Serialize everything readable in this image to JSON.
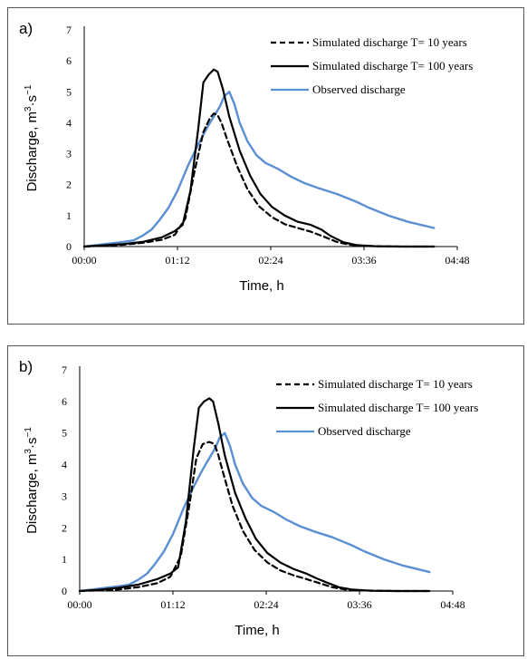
{
  "chart_data": [
    {
      "type": "line",
      "panel_label": "a)",
      "xlabel": "Time, h",
      "ylabel_prefix": "Discharge, m",
      "ylabel_sup1": "3",
      "ylabel_mid": "·s",
      "ylabel_sup2": "−1",
      "xlim": [
        0,
        288
      ],
      "ylim": [
        0,
        7
      ],
      "x_ticks": [
        {
          "value": 0,
          "label": "00:00"
        },
        {
          "value": 72,
          "label": "01:12"
        },
        {
          "value": 144,
          "label": "02:24"
        },
        {
          "value": 216,
          "label": "03:36"
        },
        {
          "value": 288,
          "label": "04:48"
        }
      ],
      "y_ticks": [
        0,
        1,
        2,
        3,
        4,
        5,
        6,
        7
      ],
      "legend_position": "top-right",
      "series": [
        {
          "name": "Simulated discharge T= 10 years",
          "color": "#000000",
          "style": "dashed",
          "x": [
            0,
            15,
            30,
            45,
            60,
            70,
            78,
            85,
            92,
            97,
            100,
            103,
            106,
            110,
            118,
            126,
            135,
            145,
            155,
            165,
            175,
            185,
            195,
            205,
            215,
            230,
            245,
            260,
            270
          ],
          "y": [
            0,
            0.03,
            0.06,
            0.12,
            0.22,
            0.38,
            0.9,
            2.4,
            3.7,
            4.15,
            4.3,
            4.25,
            4.0,
            3.5,
            2.6,
            1.85,
            1.3,
            0.95,
            0.72,
            0.6,
            0.48,
            0.32,
            0.15,
            0.06,
            0.02,
            0.01,
            0,
            0,
            0
          ]
        },
        {
          "name": "Simulated discharge T= 100 years",
          "color": "#000000",
          "style": "solid",
          "x": [
            0,
            15,
            30,
            45,
            60,
            70,
            76,
            82,
            88,
            92,
            96,
            100,
            103,
            107,
            112,
            120,
            128,
            136,
            145,
            155,
            165,
            175,
            183,
            190,
            200,
            210,
            225,
            245,
            270
          ],
          "y": [
            0,
            0.04,
            0.08,
            0.15,
            0.3,
            0.5,
            0.7,
            1.8,
            3.8,
            5.3,
            5.55,
            5.72,
            5.65,
            5.1,
            4.2,
            3.1,
            2.3,
            1.7,
            1.28,
            1.0,
            0.8,
            0.7,
            0.55,
            0.35,
            0.14,
            0.05,
            0.01,
            0,
            0
          ]
        },
        {
          "name": "Observed discharge",
          "color": "#5b8fd3",
          "style": "solid",
          "x": [
            0,
            10,
            20,
            30,
            38,
            45,
            52,
            58,
            65,
            72,
            80,
            88,
            95,
            100,
            105,
            108,
            112,
            116,
            120,
            126,
            133,
            140,
            150,
            160,
            170,
            180,
            195,
            210,
            220,
            235,
            250,
            270
          ],
          "y": [
            0,
            0.05,
            0.1,
            0.15,
            0.2,
            0.35,
            0.55,
            0.85,
            1.25,
            1.8,
            2.6,
            3.3,
            3.85,
            4.2,
            4.55,
            4.85,
            5.0,
            4.6,
            4.0,
            3.4,
            2.95,
            2.7,
            2.5,
            2.25,
            2.05,
            1.9,
            1.7,
            1.45,
            1.25,
            1.0,
            0.8,
            0.6
          ]
        }
      ]
    },
    {
      "type": "line",
      "panel_label": "b)",
      "xlabel": "Time, h",
      "ylabel_prefix": "Discharge, m",
      "ylabel_sup1": "3",
      "ylabel_mid": "·s",
      "ylabel_sup2": "−1",
      "xlim": [
        0,
        288
      ],
      "ylim": [
        0,
        7
      ],
      "x_ticks": [
        {
          "value": 0,
          "label": "00:00"
        },
        {
          "value": 72,
          "label": "01:12"
        },
        {
          "value": 144,
          "label": "02:24"
        },
        {
          "value": 216,
          "label": "03:36"
        },
        {
          "value": 288,
          "label": "04:48"
        }
      ],
      "y_ticks": [
        0,
        1,
        2,
        3,
        4,
        5,
        6,
        7
      ],
      "legend_position": "top-right",
      "series": [
        {
          "name": "Simulated discharge T= 10 years",
          "color": "#000000",
          "style": "dashed",
          "x": [
            0,
            15,
            30,
            45,
            60,
            70,
            78,
            85,
            90,
            95,
            100,
            104,
            107,
            111,
            118,
            126,
            135,
            145,
            155,
            165,
            175,
            185,
            195,
            205,
            215,
            230,
            245,
            260,
            270
          ],
          "y": [
            0,
            0.02,
            0.05,
            0.12,
            0.25,
            0.45,
            1.1,
            2.8,
            4.2,
            4.65,
            4.72,
            4.65,
            4.3,
            3.7,
            2.7,
            1.9,
            1.3,
            0.9,
            0.65,
            0.5,
            0.38,
            0.25,
            0.12,
            0.05,
            0.02,
            0.01,
            0,
            0,
            0
          ]
        },
        {
          "name": "Simulated discharge T= 100 years",
          "color": "#000000",
          "style": "solid",
          "x": [
            0,
            15,
            30,
            45,
            60,
            70,
            76,
            82,
            88,
            92,
            96,
            100,
            103,
            107,
            112,
            120,
            128,
            136,
            145,
            155,
            165,
            175,
            183,
            190,
            200,
            210,
            225,
            245,
            270
          ],
          "y": [
            0,
            0.04,
            0.1,
            0.2,
            0.38,
            0.55,
            0.75,
            2.2,
            4.5,
            5.8,
            6.0,
            6.1,
            6.0,
            5.3,
            4.3,
            3.1,
            2.3,
            1.65,
            1.2,
            0.9,
            0.7,
            0.55,
            0.4,
            0.28,
            0.12,
            0.05,
            0.01,
            0,
            0
          ]
        },
        {
          "name": "Observed discharge",
          "color": "#5b8fd3",
          "style": "solid",
          "x": [
            0,
            10,
            20,
            30,
            38,
            45,
            52,
            58,
            65,
            72,
            80,
            88,
            95,
            100,
            105,
            108,
            112,
            116,
            120,
            126,
            133,
            140,
            150,
            160,
            170,
            180,
            195,
            210,
            220,
            235,
            250,
            270
          ],
          "y": [
            0,
            0.05,
            0.1,
            0.15,
            0.2,
            0.35,
            0.55,
            0.85,
            1.25,
            1.8,
            2.6,
            3.3,
            3.85,
            4.2,
            4.55,
            4.85,
            5.0,
            4.6,
            4.0,
            3.4,
            2.95,
            2.7,
            2.5,
            2.25,
            2.05,
            1.9,
            1.7,
            1.45,
            1.25,
            1.0,
            0.8,
            0.6
          ]
        }
      ]
    }
  ]
}
